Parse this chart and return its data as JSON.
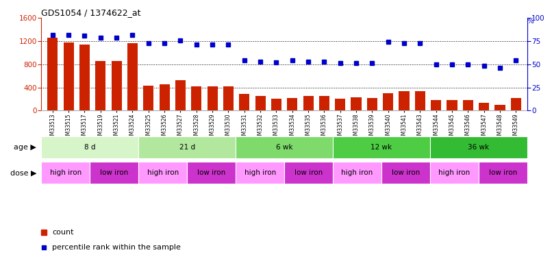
{
  "title": "GDS1054 / 1374622_at",
  "samples": [
    "GSM33513",
    "GSM33515",
    "GSM33517",
    "GSM33519",
    "GSM33521",
    "GSM33524",
    "GSM33525",
    "GSM33526",
    "GSM33527",
    "GSM33528",
    "GSM33529",
    "GSM33530",
    "GSM33531",
    "GSM33532",
    "GSM33533",
    "GSM33534",
    "GSM33535",
    "GSM33536",
    "GSM33537",
    "GSM33538",
    "GSM33539",
    "GSM33540",
    "GSM33541",
    "GSM33543",
    "GSM33544",
    "GSM33545",
    "GSM33546",
    "GSM33547",
    "GSM33548",
    "GSM33549"
  ],
  "counts": [
    1255,
    1175,
    1140,
    855,
    855,
    1165,
    435,
    455,
    520,
    420,
    420,
    420,
    290,
    255,
    210,
    220,
    250,
    250,
    210,
    225,
    215,
    300,
    340,
    340,
    175,
    185,
    185,
    130,
    100,
    220
  ],
  "percentiles": [
    82,
    82,
    81,
    79,
    79,
    82,
    73,
    73,
    76,
    71,
    71,
    71,
    54,
    53,
    52,
    54,
    53,
    53,
    51,
    51,
    51,
    74,
    73,
    73,
    50,
    50,
    50,
    48,
    46,
    54
  ],
  "age_groups": [
    {
      "label": "8 d",
      "start": 0,
      "end": 6,
      "color": "#d6f5c9"
    },
    {
      "label": "21 d",
      "start": 6,
      "end": 12,
      "color": "#b2e89d"
    },
    {
      "label": "6 wk",
      "start": 12,
      "end": 18,
      "color": "#7dda6b"
    },
    {
      "label": "12 wk",
      "start": 18,
      "end": 24,
      "color": "#4dcc44"
    },
    {
      "label": "36 wk",
      "start": 24,
      "end": 30,
      "color": "#33bb33"
    }
  ],
  "dose_groups": [
    {
      "label": "high iron",
      "start": 0,
      "end": 3,
      "color": "#ff99ff"
    },
    {
      "label": "low iron",
      "start": 3,
      "end": 6,
      "color": "#cc33cc"
    },
    {
      "label": "high iron",
      "start": 6,
      "end": 9,
      "color": "#ff99ff"
    },
    {
      "label": "low iron",
      "start": 9,
      "end": 12,
      "color": "#cc33cc"
    },
    {
      "label": "high iron",
      "start": 12,
      "end": 15,
      "color": "#ff99ff"
    },
    {
      "label": "low iron",
      "start": 15,
      "end": 18,
      "color": "#cc33cc"
    },
    {
      "label": "high iron",
      "start": 18,
      "end": 21,
      "color": "#ff99ff"
    },
    {
      "label": "low iron",
      "start": 21,
      "end": 24,
      "color": "#cc33cc"
    },
    {
      "label": "high iron",
      "start": 24,
      "end": 27,
      "color": "#ff99ff"
    },
    {
      "label": "low iron",
      "start": 27,
      "end": 30,
      "color": "#cc33cc"
    }
  ],
  "bar_color": "#cc2200",
  "dot_color": "#0000cc",
  "ylim_left": [
    0,
    1600
  ],
  "ylim_right": [
    0,
    100
  ],
  "yticks_left": [
    0,
    400,
    800,
    1200,
    1600
  ],
  "yticks_right": [
    0,
    25,
    50,
    75,
    100
  ],
  "grid_lines": [
    400,
    800,
    1200
  ],
  "background_color": "#ffffff",
  "age_label": "age",
  "dose_label": "dose"
}
